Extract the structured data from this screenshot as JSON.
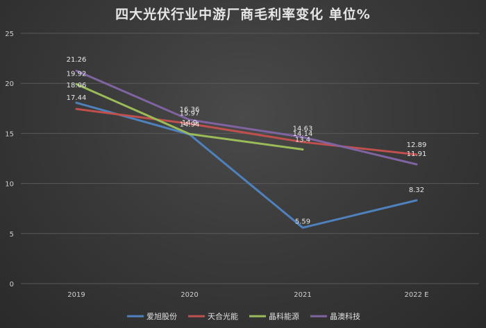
{
  "chart_data": {
    "type": "line",
    "title": "四大光伏行业中游厂商毛利率变化 单位%",
    "categories": [
      "2019",
      "2020",
      "2021",
      "2022 E"
    ],
    "ylim": [
      0,
      25
    ],
    "yticks": [
      0,
      5,
      10,
      15,
      20,
      25
    ],
    "grid": true,
    "legend_position": "bottom",
    "series": [
      {
        "name": "爱旭股份",
        "color": "#4f81bd",
        "values": [
          18.06,
          14.9,
          5.59,
          8.32
        ],
        "labels": [
          "18.06",
          "14.9",
          "5.59",
          "8.32"
        ]
      },
      {
        "name": "天合光能",
        "color": "#c0504d",
        "values": [
          17.44,
          15.97,
          14.14,
          12.89
        ],
        "labels": [
          "17.44",
          "15.97",
          "14.14",
          "12.89"
        ]
      },
      {
        "name": "晶科能源",
        "color": "#9bbb59",
        "values": [
          19.92,
          14.94,
          13.4,
          null
        ],
        "labels": [
          "19.92",
          "14.94",
          "13.4",
          null
        ]
      },
      {
        "name": "晶澳科技",
        "color": "#8064a2",
        "values": [
          21.26,
          16.36,
          14.63,
          11.91
        ],
        "labels": [
          "21.26",
          "16.36",
          "14.63",
          "11.91"
        ]
      }
    ]
  }
}
